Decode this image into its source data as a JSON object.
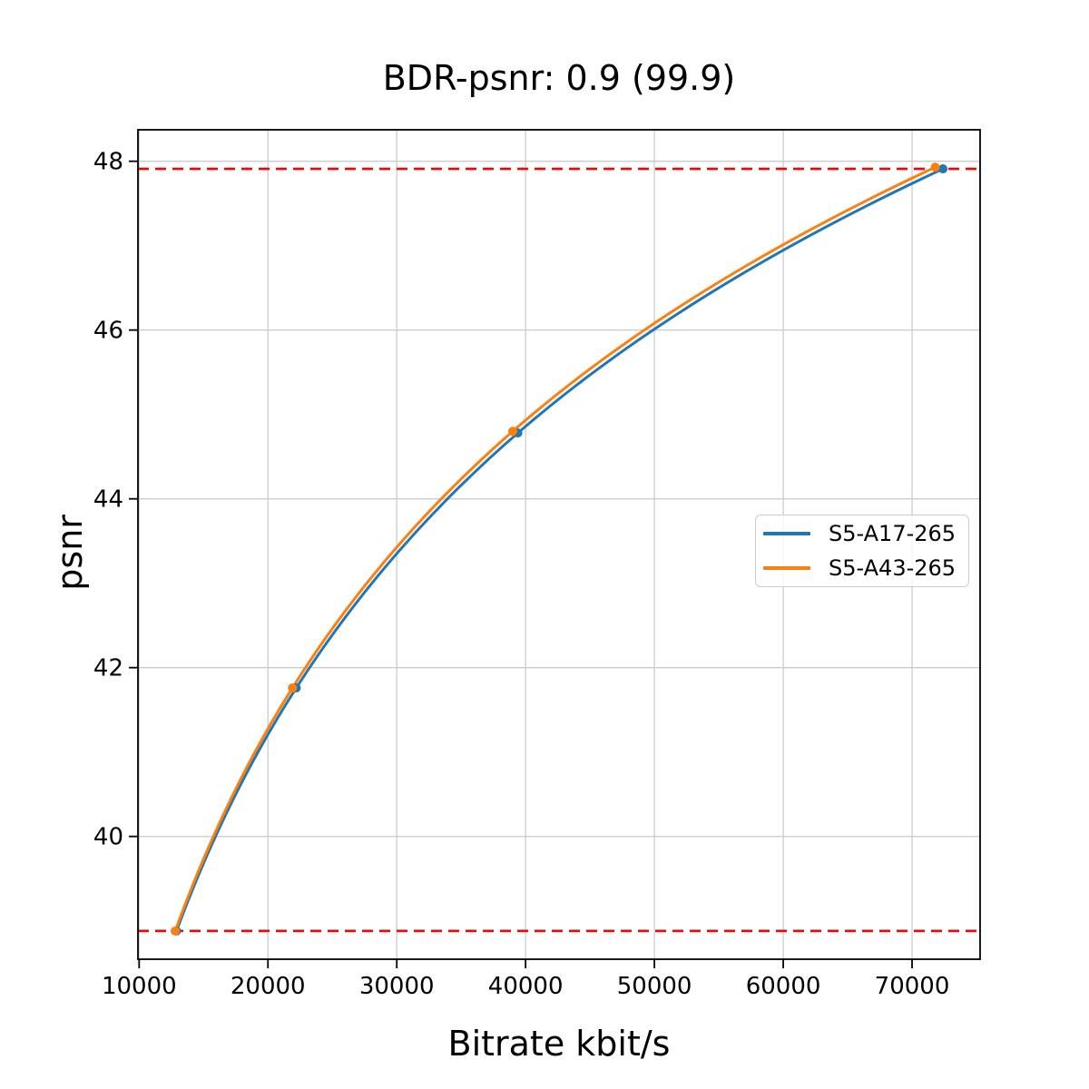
{
  "figure": {
    "title": "BDR-psnr: 0.9 (99.9)",
    "xlabel": "Bitrate kbit/s",
    "ylabel": "psnr"
  },
  "legend": {
    "items": [
      {
        "label": "S5-A17-265",
        "color": "#1f77b4"
      },
      {
        "label": "S5-A43-265",
        "color": "#ff7f0e"
      }
    ]
  },
  "chart_data": {
    "type": "line",
    "title": "BDR-psnr: 0.9 (99.9)",
    "xlabel": "Bitrate kbit/s",
    "ylabel": "psnr",
    "xlim": [
      9908,
      75282
    ],
    "ylim": [
      38.545,
      48.373
    ],
    "xticks": [
      10000,
      20000,
      30000,
      40000,
      50000,
      60000,
      70000
    ],
    "xtick_labels": [
      "10000",
      "20000",
      "30000",
      "40000",
      "50000",
      "60000",
      "70000"
    ],
    "yticks": [
      40,
      42,
      44,
      46,
      48
    ],
    "ytick_labels": [
      "40",
      "42",
      "44",
      "46",
      "48"
    ],
    "grid": true,
    "grid_color": "#cccccc",
    "legend_position": "center right",
    "series": [
      {
        "name": "S5-A17-265",
        "color": "#1f77b4",
        "marker": "circle",
        "interpolation": "pchip-log-x",
        "points": [
          [
            12900,
            38.88
          ],
          [
            22200,
            41.76
          ],
          [
            39400,
            44.78
          ],
          [
            72400,
            47.91
          ]
        ]
      },
      {
        "name": "S5-A43-265",
        "color": "#ff7f0e",
        "marker": "circle",
        "interpolation": "pchip-log-x",
        "points": [
          [
            12800,
            38.88
          ],
          [
            21900,
            41.76
          ],
          [
            39000,
            44.8
          ],
          [
            71800,
            47.93
          ]
        ]
      }
    ],
    "hlines": [
      {
        "y": 47.91,
        "color": "#ff0000",
        "style": "dashed"
      },
      {
        "y": 38.88,
        "color": "#ff0000",
        "style": "dashed"
      }
    ]
  }
}
